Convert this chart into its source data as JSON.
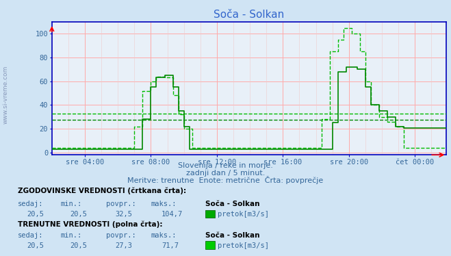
{
  "title": "Soča - Solkan",
  "bg_color": "#d0e4f4",
  "plot_bg_color": "#e8f0f8",
  "grid_color_major": "#ffaaaa",
  "grid_color_minor": "#eecccc",
  "x_labels": [
    "sre 04:00",
    "sre 08:00",
    "sre 12:00",
    "sre 16:00",
    "sre 20:00",
    "čet 00:00"
  ],
  "y_ticks": [
    0,
    20,
    40,
    60,
    80,
    100
  ],
  "ylim": [
    -2,
    110
  ],
  "subtitle1": "Slovenija / reke in morje.",
  "subtitle2": "zadnji dan / 5 minut.",
  "subtitle3": "Meritve: trenutne  Enote: metrične  Črta: povprečje",
  "hist_label": "ZGODOVINSKE VREDNOSTI (črtkana črta):",
  "curr_label": "TRENUTNE VREDNOSTI (polna črta):",
  "col_headers": [
    "sedaj:",
    "min.:",
    "povpr.:",
    "maks.:"
  ],
  "station_name": "Soča - Solkan",
  "legend_label": "pretok[m3/s]",
  "hist_values": [
    "20,5",
    "20,5",
    "32,5",
    "104,7"
  ],
  "curr_values": [
    "20,5",
    "20,5",
    "27,3",
    "71,7"
  ],
  "avg_line_value": 32.5,
  "curr_avg_line_value": 27.3,
  "text_color": "#336699",
  "title_color": "#3366cc",
  "watermark": "www.si-vreme.com",
  "solid_line_color": "#008800",
  "dashed_line_color": "#00bb00",
  "axis_line_color": "#0000bb",
  "side_text_color": "#8899bb",
  "label_color": "#000000",
  "header_color": "#336699"
}
